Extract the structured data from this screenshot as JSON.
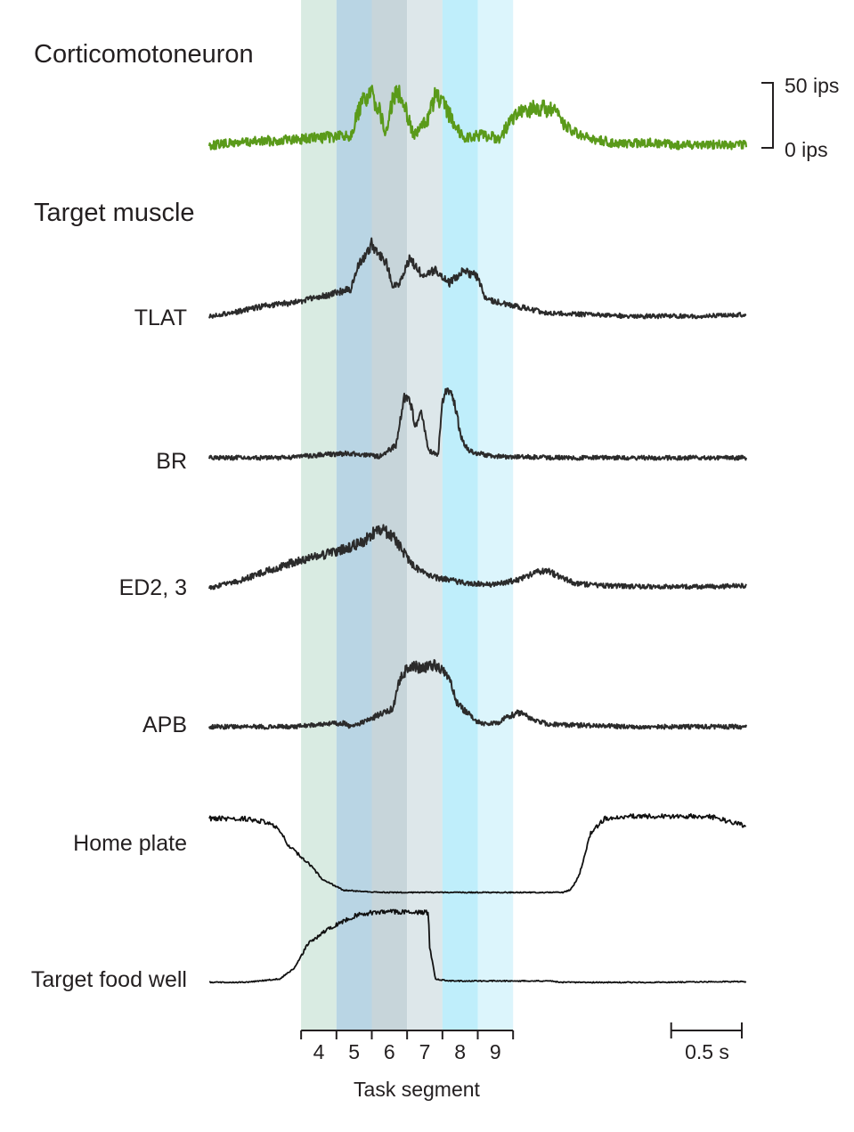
{
  "chart_data": {
    "type": "line",
    "title": "",
    "x_unit": "s",
    "x_range_s": [
      0,
      3.8
    ],
    "colors": {
      "neuron_trace": "#5a9a1a",
      "muscle_trace": "#2b2b2b",
      "position_trace": "#111111",
      "segments": [
        "#d9ebe2",
        "#b9d5e4",
        "#c7d5da",
        "#dde7ea",
        "#bfeefb",
        "#dcf5fc"
      ]
    },
    "neuron": {
      "label": "Corticomotoneuron",
      "unit": "ips",
      "scale_top_label": "50 ips",
      "scale_bottom_label": "0 ips",
      "scale_range": [
        0,
        50
      ],
      "x": [
        0,
        0.2,
        0.5,
        0.8,
        0.9,
        1.0,
        1.05,
        1.1,
        1.15,
        1.2,
        1.25,
        1.3,
        1.35,
        1.45,
        1.55,
        1.6,
        1.68,
        1.75,
        1.8,
        1.88,
        1.95,
        2.05,
        2.15,
        2.25,
        2.35,
        2.45,
        2.55,
        2.65,
        2.75,
        2.85,
        2.95,
        3.1,
        3.3,
        3.5,
        3.7,
        3.8
      ],
      "y": [
        0,
        2,
        4,
        6,
        7,
        8,
        25,
        38,
        40,
        30,
        8,
        38,
        44,
        7,
        22,
        40,
        28,
        15,
        6,
        7,
        8,
        5,
        22,
        28,
        30,
        26,
        12,
        6,
        4,
        2,
        1,
        2,
        0,
        1,
        0,
        0
      ]
    },
    "section_label": "Target muscle",
    "muscles": [
      {
        "name": "TLAT",
        "x": [
          0,
          0.2,
          0.4,
          0.6,
          0.8,
          1.0,
          1.05,
          1.15,
          1.2,
          1.25,
          1.3,
          1.35,
          1.42,
          1.5,
          1.6,
          1.7,
          1.8,
          1.9,
          1.95,
          2.05,
          2.2,
          2.4,
          2.7,
          3.0,
          3.5,
          3.8
        ],
        "y": [
          0,
          3,
          7,
          9,
          13,
          18,
          32,
          48,
          40,
          36,
          20,
          22,
          38,
          28,
          30,
          22,
          30,
          26,
          12,
          9,
          6,
          2,
          1,
          0,
          0,
          1
        ]
      },
      {
        "name": "BR",
        "x": [
          0,
          0.5,
          0.8,
          1.0,
          1.2,
          1.32,
          1.38,
          1.42,
          1.46,
          1.5,
          1.55,
          1.62,
          1.65,
          1.68,
          1.72,
          1.75,
          1.78,
          1.83,
          1.9,
          2.0,
          2.5,
          3.0,
          3.8
        ],
        "y": [
          0,
          0,
          2,
          3,
          1,
          8,
          40,
          38,
          20,
          30,
          5,
          2,
          38,
          45,
          40,
          30,
          14,
          5,
          3,
          1,
          0,
          0,
          0
        ]
      },
      {
        "name": "ED2, 3",
        "x": [
          0,
          0.2,
          0.4,
          0.6,
          0.8,
          1.0,
          1.1,
          1.2,
          1.3,
          1.35,
          1.45,
          1.6,
          1.8,
          2.0,
          2.2,
          2.3,
          2.4,
          2.5,
          2.6,
          2.8,
          3.2,
          3.5,
          3.8
        ],
        "y": [
          0,
          6,
          16,
          25,
          32,
          40,
          46,
          58,
          50,
          40,
          20,
          10,
          5,
          3,
          8,
          15,
          16,
          10,
          4,
          2,
          1,
          1,
          2
        ]
      },
      {
        "name": "APB",
        "x": [
          0,
          0.6,
          0.8,
          0.95,
          1.0,
          1.12,
          1.2,
          1.3,
          1.35,
          1.42,
          1.5,
          1.6,
          1.7,
          1.75,
          1.8,
          1.9,
          1.95,
          2.05,
          2.1,
          2.2,
          2.3,
          2.4,
          3.0,
          3.5,
          3.8
        ],
        "y": [
          0,
          0,
          2,
          3,
          0,
          5,
          10,
          15,
          40,
          52,
          48,
          52,
          40,
          20,
          14,
          4,
          2,
          4,
          8,
          12,
          6,
          2,
          0,
          0,
          0
        ]
      }
    ],
    "positions": [
      {
        "name": "Home plate",
        "x": [
          0,
          0.25,
          0.4,
          0.5,
          0.55,
          0.7,
          0.8,
          0.95,
          1.2,
          1.5,
          2.0,
          2.3,
          2.5,
          2.55,
          2.58,
          2.62,
          2.7,
          2.8,
          3.0,
          3.3,
          3.5,
          3.6,
          3.65,
          3.8
        ],
        "y": [
          100,
          100,
          95,
          85,
          65,
          40,
          18,
          3,
          0,
          0,
          0,
          0,
          0,
          3,
          10,
          25,
          80,
          100,
          103,
          103,
          103,
          101,
          97,
          90
        ],
        "y_range": [
          0,
          100
        ]
      },
      {
        "name": "Target food well",
        "x": [
          0,
          0.25,
          0.5,
          0.6,
          0.7,
          0.8,
          0.9,
          1.0,
          1.05,
          1.1,
          1.2,
          1.4,
          1.5,
          1.55,
          1.56,
          1.6,
          1.7,
          2.0,
          2.4,
          2.5,
          2.8,
          3.2,
          3.6,
          3.8
        ],
        "y": [
          0,
          0,
          5,
          20,
          55,
          70,
          82,
          92,
          96,
          98,
          100,
          100,
          100,
          99,
          50,
          5,
          2,
          2,
          2,
          0,
          0,
          0,
          1,
          1
        ],
        "y_range": [
          0,
          100
        ]
      }
    ],
    "segments": {
      "xlabel": "Task segment",
      "labels": [
        "4",
        "5",
        "6",
        "7",
        "8",
        "9"
      ],
      "start_s": [
        0.65,
        0.9,
        1.15,
        1.4,
        1.65,
        1.9
      ],
      "end_s": [
        0.9,
        1.15,
        1.4,
        1.65,
        1.9,
        2.15
      ]
    },
    "time_scale": {
      "label": "0.5 s",
      "length_s": 0.5
    }
  }
}
